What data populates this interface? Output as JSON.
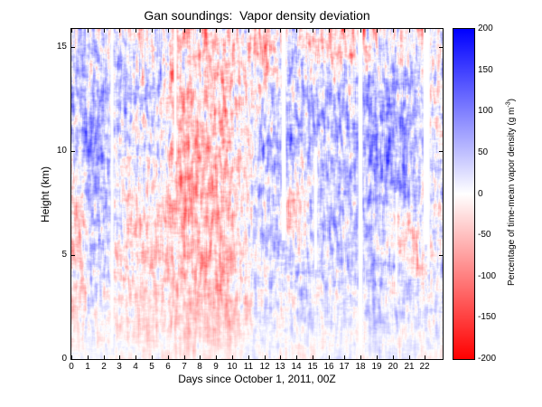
{
  "chart_data": {
    "type": "heatmap",
    "title": "Gan soundings:  Vapor density deviation",
    "xlabel": "Days since October 1, 2011, 00Z",
    "ylabel": "Height (km)",
    "xlim": [
      0,
      23.1
    ],
    "ylim": [
      0,
      15.87
    ],
    "x_ticks": [
      0,
      1,
      2,
      3,
      4,
      5,
      6,
      7,
      8,
      9,
      10,
      11,
      12,
      13,
      14,
      15,
      16,
      17,
      18,
      19,
      20,
      21,
      22
    ],
    "y_ticks": [
      0,
      5,
      10,
      15
    ],
    "colorbar": {
      "label_main": "Percentage of time-mean vapor density (g m",
      "label_sup": "-3",
      "label_end": ")",
      "ticks": [
        200,
        150,
        100,
        50,
        0,
        -50,
        -100,
        -150,
        -200
      ],
      "min": -200,
      "max": 200,
      "colors": {
        "min": "#ff0000",
        "mid": "#ffffff",
        "max": "#0000ff"
      }
    },
    "grid": {
      "note": "approx % deviation; rows top-to-bottom are 1-km height bands 16..0 km; cols are 1-day bands, days 0..23",
      "values": [
        [
          40,
          30,
          10,
          25,
          -15,
          15,
          -25,
          -30,
          -30,
          -25,
          -20,
          -25,
          -30,
          15,
          -10,
          -30,
          -35,
          -25,
          -20,
          10,
          -15,
          -20,
          -15
        ],
        [
          45,
          40,
          15,
          35,
          15,
          20,
          -30,
          -35,
          -35,
          -30,
          -20,
          -20,
          -25,
          30,
          15,
          -20,
          -30,
          -20,
          -15,
          25,
          15,
          -15,
          -10
        ],
        [
          40,
          45,
          20,
          40,
          25,
          25,
          -35,
          -40,
          -40,
          -30,
          -15,
          -10,
          -15,
          40,
          30,
          25,
          20,
          20,
          40,
          55,
          45,
          25,
          10
        ],
        [
          45,
          50,
          25,
          35,
          30,
          20,
          -40,
          -45,
          -45,
          -35,
          -20,
          10,
          15,
          50,
          40,
          35,
          30,
          30,
          60,
          75,
          65,
          35,
          15
        ],
        [
          55,
          65,
          20,
          30,
          25,
          15,
          -45,
          -50,
          -50,
          -40,
          -25,
          20,
          30,
          55,
          45,
          40,
          35,
          35,
          70,
          85,
          75,
          40,
          20
        ],
        [
          45,
          80,
          20,
          25,
          20,
          10,
          -50,
          -55,
          -55,
          -45,
          -30,
          25,
          40,
          60,
          50,
          35,
          40,
          40,
          75,
          90,
          80,
          45,
          20
        ],
        [
          30,
          85,
          25,
          20,
          15,
          5,
          -45,
          -55,
          -55,
          -45,
          -25,
          30,
          45,
          55,
          -10,
          30,
          40,
          35,
          70,
          85,
          70,
          45,
          20
        ],
        [
          -30,
          60,
          25,
          15,
          10,
          0,
          -40,
          -50,
          -50,
          -40,
          -20,
          30,
          45,
          50,
          -25,
          30,
          35,
          30,
          60,
          75,
          65,
          40,
          15
        ],
        [
          -40,
          40,
          35,
          -20,
          -20,
          -25,
          -45,
          -50,
          -50,
          -45,
          -25,
          25,
          30,
          -20,
          -10,
          35,
          40,
          35,
          50,
          55,
          30,
          35,
          10
        ],
        [
          -40,
          45,
          30,
          -25,
          -25,
          -25,
          -45,
          -50,
          -55,
          -45,
          -30,
          20,
          30,
          -35,
          -10,
          30,
          40,
          35,
          45,
          30,
          -25,
          0,
          10
        ],
        [
          -35,
          40,
          25,
          -25,
          -25,
          -30,
          -45,
          -50,
          -55,
          -50,
          -30,
          15,
          25,
          20,
          25,
          30,
          35,
          30,
          40,
          25,
          -30,
          -25,
          10
        ],
        [
          -30,
          35,
          20,
          -25,
          -30,
          -30,
          -40,
          -50,
          -55,
          -50,
          -35,
          10,
          20,
          25,
          30,
          -15,
          30,
          25,
          35,
          30,
          20,
          -15,
          5
        ],
        [
          -20,
          25,
          10,
          -20,
          -30,
          -30,
          -35,
          -50,
          -55,
          -50,
          -35,
          10,
          15,
          20,
          25,
          20,
          20,
          15,
          25,
          25,
          15,
          10,
          5
        ],
        [
          -15,
          10,
          0,
          -15,
          -25,
          -30,
          -35,
          -45,
          -50,
          -45,
          -30,
          5,
          15,
          15,
          20,
          15,
          15,
          10,
          20,
          20,
          10,
          10,
          0
        ],
        [
          -10,
          0,
          -5,
          -10,
          -20,
          -25,
          -30,
          -35,
          -40,
          -35,
          -25,
          5,
          10,
          10,
          10,
          10,
          10,
          5,
          10,
          15,
          10,
          5,
          0
        ],
        [
          0,
          5,
          0,
          -5,
          -10,
          -10,
          -10,
          -15,
          -15,
          -15,
          -10,
          5,
          5,
          -10,
          -10,
          -5,
          5,
          0,
          5,
          5,
          5,
          0,
          0
        ]
      ]
    },
    "missing_intervals": [
      {
        "day_start": 2.45,
        "day_end": 2.62,
        "km_bottom": 0.5,
        "km_top": 15.87
      },
      {
        "day_start": 6.38,
        "day_end": 6.55,
        "km_bottom": 9.5,
        "km_top": 15.87
      },
      {
        "day_start": 13.08,
        "day_end": 13.35,
        "km_bottom": 5.7,
        "km_top": 15.87
      },
      {
        "day_start": 15.1,
        "day_end": 15.3,
        "km_bottom": 4.3,
        "km_top": 10.2
      },
      {
        "day_start": 17.85,
        "day_end": 18.12,
        "km_bottom": 0.5,
        "km_top": 15.87
      },
      {
        "day_start": 20.15,
        "day_end": 20.27,
        "km_bottom": 3.3,
        "km_top": 8.0
      },
      {
        "day_start": 21.9,
        "day_end": 22.3,
        "km_bottom": 5.5,
        "km_top": 15.87
      },
      {
        "day_start": 22.15,
        "day_end": 22.3,
        "km_bottom": 4.3,
        "km_top": 5.5
      }
    ],
    "texture_hint": {
      "streak_amplitude": 30,
      "blob_amplitude": 16
    }
  }
}
